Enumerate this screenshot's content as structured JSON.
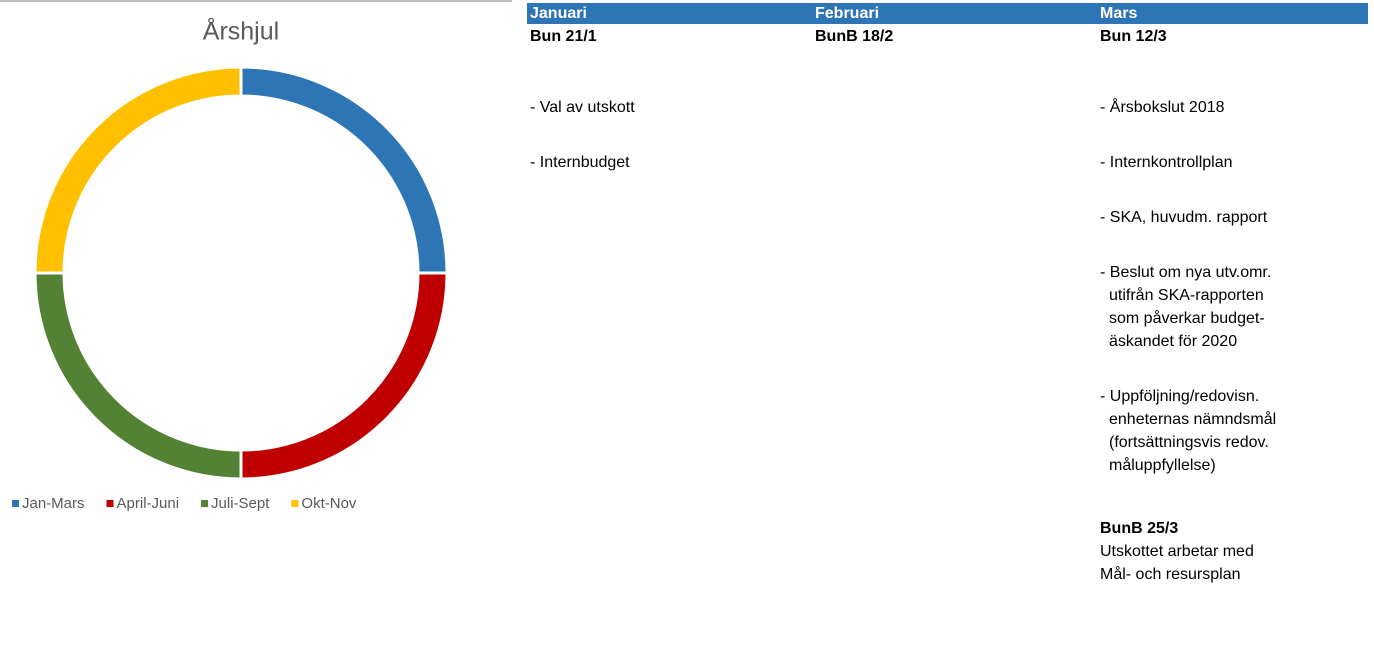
{
  "chart_data": {
    "type": "pie",
    "title": "Årshjul",
    "categories": [
      "Jan-Mars",
      "April-Juni",
      "Juli-Sept",
      "Okt-Nov"
    ],
    "values": [
      25,
      25,
      25,
      25
    ],
    "colors": [
      "#2e75b6",
      "#c00000",
      "#548235",
      "#ffc000"
    ],
    "legend": "bottom"
  },
  "table": {
    "columns": [
      {
        "header": "Januari",
        "blocks": [
          {
            "title": "Bun 21/1",
            "items": [
              [
                "- Val av utskott"
              ],
              [
                "- Internbudget"
              ]
            ]
          }
        ]
      },
      {
        "header": "Februari",
        "blocks": [
          {
            "title": "BunB 18/2",
            "items": []
          }
        ]
      },
      {
        "header": "Mars",
        "blocks": [
          {
            "title": "Bun 12/3",
            "items": [
              [
                "- Årsbokslut 2018"
              ],
              [
                "- Internkontrollplan"
              ],
              [
                "- SKA, huvudm. rapport"
              ],
              [
                "- Beslut om nya utv.omr.",
                "utifrån SKA-rapporten",
                "som påverkar budget-",
                "äskandet för 2020"
              ],
              [
                "- Uppföljning/redovisn.",
                "enheternas nämndsmål",
                "(fortsättningsvis redov.",
                "måluppfyllelse)"
              ]
            ]
          },
          {
            "title": "BunB 25/3",
            "text": [
              "Utskottet arbetar med",
              "Mål- och resursplan"
            ]
          }
        ]
      }
    ]
  }
}
